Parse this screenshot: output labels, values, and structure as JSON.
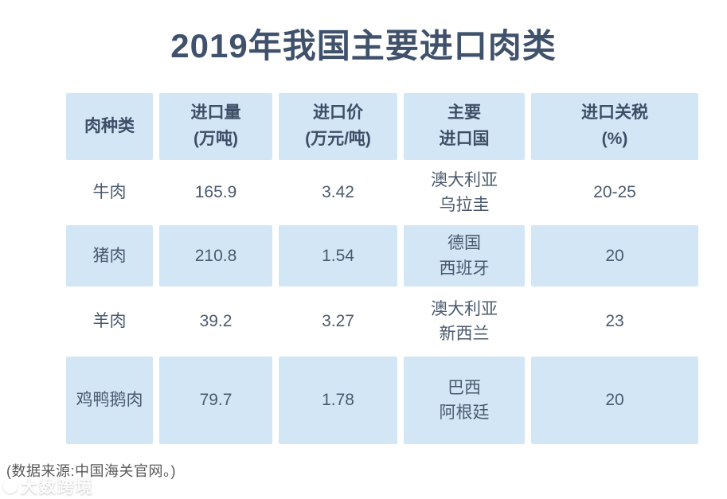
{
  "title": "2019年我国主要进口肉类",
  "table": {
    "headers": [
      "肉种类",
      "进口量\n(万吨)",
      "进口价\n(万元/吨)",
      "主要\n进口国",
      "进口关税\n(%)"
    ],
    "rows": [
      {
        "cells": [
          "牛肉",
          "165.9",
          "3.42",
          "澳大利亚\n乌拉圭",
          "20-25"
        ]
      },
      {
        "cells": [
          "猪肉",
          "210.8",
          "1.54",
          "德国\n西班牙",
          "20"
        ]
      },
      {
        "cells": [
          "羊肉",
          "39.2",
          "3.27",
          "澳大利亚\n新西兰",
          "23"
        ]
      },
      {
        "cells": [
          "鸡鸭鹅肉",
          "79.7",
          "1.78",
          "巴西\n阿根廷",
          "20"
        ]
      }
    ]
  },
  "footer": {
    "source_note": "(数据来源:中国海关官网。)"
  },
  "watermark": {
    "text": "大数跨境"
  },
  "colors": {
    "accent_blue": "#d3e6f6",
    "title_dark": "#3f516b",
    "cell_text": "#4a5a6e",
    "footer_gray": "#595959"
  }
}
